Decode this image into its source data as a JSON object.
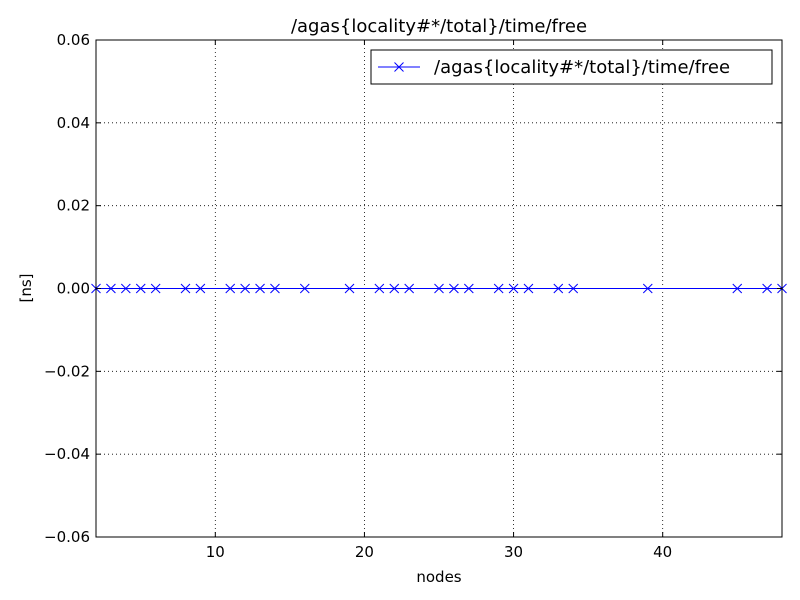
{
  "chart_data": {
    "type": "line",
    "title": "/agas{locality#*/total}/time/free",
    "xlabel": "nodes",
    "ylabel": "[ns]",
    "xlim": [
      2,
      48
    ],
    "ylim": [
      -0.06,
      0.06
    ],
    "xticks": [
      10,
      20,
      30,
      40
    ],
    "yticks": [
      -0.06,
      -0.04,
      -0.02,
      0.0,
      0.02,
      0.04,
      0.06
    ],
    "ytick_labels": [
      "−0.06",
      "−0.04",
      "−0.02",
      "0.00",
      "0.02",
      "0.04",
      "0.06"
    ],
    "grid": true,
    "legend": "top-right",
    "series": [
      {
        "name": "/agas{locality#*/total}/time/free",
        "color": "#0000ff",
        "marker": "x",
        "x": [
          2,
          3,
          4,
          5,
          6,
          8,
          9,
          11,
          12,
          13,
          14,
          16,
          19,
          21,
          22,
          23,
          25,
          26,
          27,
          29,
          30,
          31,
          33,
          34,
          39,
          45,
          47,
          48
        ],
        "y": [
          0,
          0,
          0,
          0,
          0,
          0,
          0,
          0,
          0,
          0,
          0,
          0,
          0,
          0,
          0,
          0,
          0,
          0,
          0,
          0,
          0,
          0,
          0,
          0,
          0,
          0,
          0,
          0
        ]
      }
    ]
  }
}
